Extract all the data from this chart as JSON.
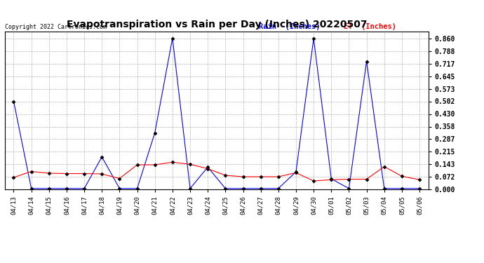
{
  "title": "Evapotranspiration vs Rain per Day (Inches) 20220507",
  "copyright": "Copyright 2022 Cartronics.com",
  "legend_rain": "Rain  (Inches)",
  "legend_et": "ET  (Inches)",
  "dates": [
    "04/13",
    "04/14",
    "04/15",
    "04/16",
    "04/17",
    "04/18",
    "04/19",
    "04/20",
    "04/21",
    "04/22",
    "04/23",
    "04/24",
    "04/25",
    "04/26",
    "04/27",
    "04/28",
    "04/29",
    "04/30",
    "05/01",
    "05/02",
    "05/03",
    "05/04",
    "05/05",
    "05/06"
  ],
  "rain": [
    0.502,
    0.005,
    0.005,
    0.005,
    0.005,
    0.185,
    0.005,
    0.005,
    0.322,
    0.862,
    0.005,
    0.127,
    0.005,
    0.005,
    0.005,
    0.005,
    0.1,
    0.86,
    0.06,
    0.005,
    0.73,
    0.005,
    0.005,
    0.005
  ],
  "et": [
    0.068,
    0.102,
    0.092,
    0.09,
    0.09,
    0.088,
    0.062,
    0.14,
    0.14,
    0.155,
    0.143,
    0.118,
    0.08,
    0.072,
    0.072,
    0.072,
    0.095,
    0.048,
    0.055,
    0.058,
    0.058,
    0.13,
    0.075,
    0.055
  ],
  "rain_color": "#0000ff",
  "et_color": "#ff0000",
  "bg_color": "#ffffff",
  "grid_color": "#aaaaaa",
  "ylim_min": 0.0,
  "ylim_max": 0.9,
  "yticks": [
    0.0,
    0.072,
    0.143,
    0.215,
    0.287,
    0.358,
    0.43,
    0.502,
    0.573,
    0.645,
    0.717,
    0.788,
    0.86
  ]
}
